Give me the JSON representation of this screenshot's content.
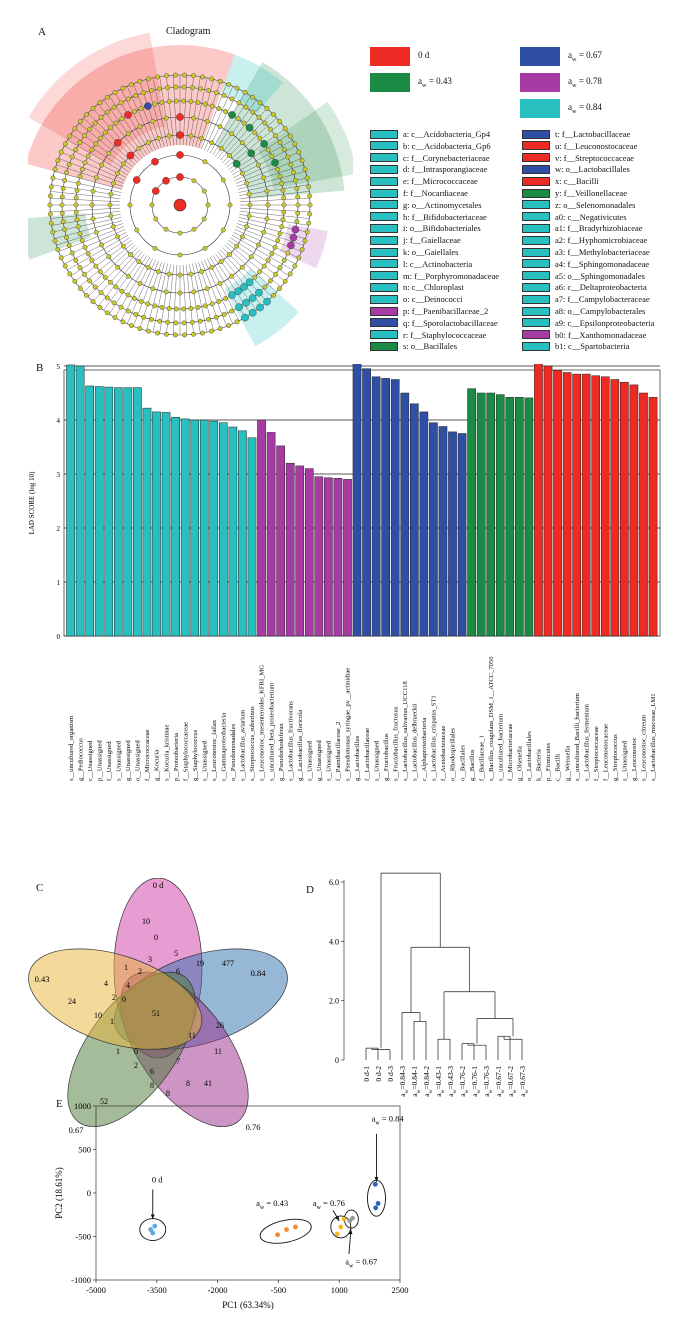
{
  "panels": {
    "a": "A",
    "b": "B",
    "c": "C",
    "d": "D",
    "e": "E"
  },
  "cladogram": {
    "title": "Cladogram",
    "groups": [
      {
        "label": "0 d",
        "color": "#ee2a24"
      },
      {
        "label": "aw = 0.43",
        "color": "#1b8a44"
      },
      {
        "label": "aw = 0.67",
        "color": "#2f4fa5"
      },
      {
        "label": "aw = 0.78",
        "color": "#a63ca3"
      },
      {
        "label": "aw = 0.84",
        "color": "#27bfc0"
      }
    ],
    "taxa_left": [
      {
        "t": "a: c__Acidobacteria_Gp4",
        "c": "#27bfc0"
      },
      {
        "t": "b: c__Acidobacteria_Gp6",
        "c": "#27bfc0"
      },
      {
        "t": "c: f__Corynebacteriaceae",
        "c": "#27bfc0"
      },
      {
        "t": "d: f__Intrasporangiaceae",
        "c": "#27bfc0"
      },
      {
        "t": "e: f__Micrococcaceae",
        "c": "#27bfc0"
      },
      {
        "t": "f: f__Nocardiaceae",
        "c": "#27bfc0"
      },
      {
        "t": "g: o__Actinomycetales",
        "c": "#27bfc0"
      },
      {
        "t": "h: f__Bifidobacteriaceae",
        "c": "#27bfc0"
      },
      {
        "t": "i: o__Bifidobacteriales",
        "c": "#27bfc0"
      },
      {
        "t": "j: f__Gaiellaceae",
        "c": "#27bfc0"
      },
      {
        "t": "k: o__Gaiellales",
        "c": "#27bfc0"
      },
      {
        "t": "l: c__Actinobacteria",
        "c": "#27bfc0"
      },
      {
        "t": "m: f__Porphyromonadaceae",
        "c": "#27bfc0"
      },
      {
        "t": "n: c__Chloroplast",
        "c": "#27bfc0"
      },
      {
        "t": "o: c__Deinococci",
        "c": "#27bfc0"
      },
      {
        "t": "p: f__Paenibacillaceae_2",
        "c": "#a63ca3"
      },
      {
        "t": "q: f__Sporolactobacillaceae",
        "c": "#2f4fa5"
      },
      {
        "t": "r: f__Staphylococcaceae",
        "c": "#27bfc0"
      },
      {
        "t": "s: o__Bacillales",
        "c": "#1b8a44"
      }
    ],
    "taxa_right": [
      {
        "t": "t: f__Lactobacillaceae",
        "c": "#2f4fa5"
      },
      {
        "t": "u: f__Leuconostocaceae",
        "c": "#ee2a24"
      },
      {
        "t": "v: f__Streptococcaceae",
        "c": "#ee2a24"
      },
      {
        "t": "w: o__Lactobacillales",
        "c": "#2f4fa5"
      },
      {
        "t": "x: c__Bacilli",
        "c": "#ee2a24"
      },
      {
        "t": "y: f__Veillonellaceae",
        "c": "#1b8a44"
      },
      {
        "t": "z: o__Selenomonadales",
        "c": "#27bfc0"
      },
      {
        "t": "a0: c__Negativicutes",
        "c": "#27bfc0"
      },
      {
        "t": "a1: f__Bradyrhizobiaceae",
        "c": "#27bfc0"
      },
      {
        "t": "a2: f__Hyphomicrobiaceae",
        "c": "#27bfc0"
      },
      {
        "t": "a3: f__Methylobacteriaceae",
        "c": "#27bfc0"
      },
      {
        "t": "a4: f__Sphingomonadaceae",
        "c": "#27bfc0"
      },
      {
        "t": "a5: o__Sphingomonadales",
        "c": "#27bfc0"
      },
      {
        "t": "a6: c__Deltaproteobacteria",
        "c": "#27bfc0"
      },
      {
        "t": "a7: f__Campylobacteraceae",
        "c": "#27bfc0"
      },
      {
        "t": "a8: o__Campylobacterales",
        "c": "#27bfc0"
      },
      {
        "t": "a9: c__Epsilonproteobacteria",
        "c": "#27bfc0"
      },
      {
        "t": "b0: f__Xanthomonadaceae",
        "c": "#a63ca3"
      },
      {
        "t": "b1: c__Spartobacteria",
        "c": "#27bfc0"
      }
    ]
  },
  "chart_data": [
    {
      "type": "bar",
      "panel": "B",
      "ylabel": "LAD SCORE (log 10)",
      "ylim": [
        0,
        5
      ],
      "yticks": [
        "0",
        "1",
        "2",
        "3",
        "4",
        "5"
      ],
      "grid": true,
      "colors": {
        "0.84": "#27bfc0",
        "0.78": "#a63ca3",
        "0.67": "#2f4fa5",
        "0.43": "#1b8a44",
        "0d": "#ee2a24"
      },
      "bars": [
        {
          "label": "s__uncultured_organism",
          "value": 5.02,
          "g": "0.84"
        },
        {
          "label": "g__Pediococcus",
          "value": 5.0,
          "g": "0.84"
        },
        {
          "label": "c__Unassigned",
          "value": 4.63,
          "g": "0.84"
        },
        {
          "label": "p__Unassigned",
          "value": 4.62,
          "g": "0.84"
        },
        {
          "label": "f__Unassigned",
          "value": 4.61,
          "g": "0.84"
        },
        {
          "label": "s__Unassigned",
          "value": 4.6,
          "g": "0.84"
        },
        {
          "label": "g__Unassigned",
          "value": 4.6,
          "g": "0.84"
        },
        {
          "label": "o__Unassigned",
          "value": 4.6,
          "g": "0.84"
        },
        {
          "label": "f__Micrococcaceae",
          "value": 4.22,
          "g": "0.84"
        },
        {
          "label": "g__Kocuria",
          "value": 4.15,
          "g": "0.84"
        },
        {
          "label": "s__Kocuria_kristinae",
          "value": 4.14,
          "g": "0.84"
        },
        {
          "label": "p__Proteobacteria",
          "value": 4.05,
          "g": "0.84"
        },
        {
          "label": "f__Staphylococcaceae",
          "value": 4.02,
          "g": "0.84"
        },
        {
          "label": "g__Staphylococcus",
          "value": 4.0,
          "g": "0.84"
        },
        {
          "label": "s__Unassigned",
          "value": 4.0,
          "g": "0.84"
        },
        {
          "label": "s__Leuconostoc_fallax",
          "value": 3.98,
          "g": "0.84"
        },
        {
          "label": "c__Gammaproteobacteria",
          "value": 3.95,
          "g": "0.84"
        },
        {
          "label": "o__Pseudomonadales",
          "value": 3.87,
          "g": "0.84"
        },
        {
          "label": "s__Lactobacillus_aviarium",
          "value": 3.8,
          "g": "0.84"
        },
        {
          "label": "s__Streptococcus_suberinus",
          "value": 3.67,
          "g": "0.84"
        },
        {
          "label": "s__Leuconostoc_mesenteroides_KFRI_MG",
          "value": 4.0,
          "g": "0.78"
        },
        {
          "label": "s__uncultured_beta_proteobacterium",
          "value": 3.77,
          "g": "0.78"
        },
        {
          "label": "g__Pseudorhodoferax",
          "value": 3.52,
          "g": "0.78"
        },
        {
          "label": "s__Lactobacillus_fructivorans",
          "value": 3.2,
          "g": "0.78"
        },
        {
          "label": "g__Lactobacillus_floricola",
          "value": 3.15,
          "g": "0.78"
        },
        {
          "label": "s__Unassigned",
          "value": 3.1,
          "g": "0.78"
        },
        {
          "label": "g__Unassigned",
          "value": 2.95,
          "g": "0.78"
        },
        {
          "label": "s__Unassigned",
          "value": 2.93,
          "g": "0.78"
        },
        {
          "label": "f__Paenibacillaceae_2",
          "value": 2.92,
          "g": "0.78"
        },
        {
          "label": "s__Pseudomonas_syringae_pv__actinidiae",
          "value": 2.9,
          "g": "0.78"
        },
        {
          "label": "g__Lactobacillus",
          "value": 5.08,
          "g": "0.67"
        },
        {
          "label": "f__Lactobacillaceae",
          "value": 4.95,
          "g": "0.67"
        },
        {
          "label": "s__Unassigned",
          "value": 4.8,
          "g": "0.67"
        },
        {
          "label": "g__Fructobacillus",
          "value": 4.77,
          "g": "0.67"
        },
        {
          "label": "s__Fructobacillus_fructosus",
          "value": 4.75,
          "g": "0.67"
        },
        {
          "label": "s__Lactobacillus_salivarius_UCC118",
          "value": 4.5,
          "g": "0.67"
        },
        {
          "label": "s__Lactobacillus_delbrueckii",
          "value": 4.3,
          "g": "0.67"
        },
        {
          "label": "c__Alphaproteobacteria",
          "value": 4.15,
          "g": "0.67"
        },
        {
          "label": "s__Lactobacillus_crispatus_ST1",
          "value": 3.95,
          "g": "0.67"
        },
        {
          "label": "f__Acetobacteraceae",
          "value": 3.88,
          "g": "0.67"
        },
        {
          "label": "o__Rhodospirillales",
          "value": 3.78,
          "g": "0.67"
        },
        {
          "label": "o__Bacillales",
          "value": 3.75,
          "g": "0.67"
        },
        {
          "label": "g__Bacillus",
          "value": 4.58,
          "g": "0.43"
        },
        {
          "label": "f__Bacillaceae_1",
          "value": 4.5,
          "g": "0.43"
        },
        {
          "label": "s__Bacillus_coagulans_DSM_1__ATCC_7050",
          "value": 4.5,
          "g": "0.43"
        },
        {
          "label": "s__uncultured_bacterium",
          "value": 4.47,
          "g": "0.43"
        },
        {
          "label": "f__Microbacteriaceae",
          "value": 4.42,
          "g": "0.43"
        },
        {
          "label": "g__Olsenella",
          "value": 4.42,
          "g": "0.43"
        },
        {
          "label": "o__Lactobacillales",
          "value": 4.41,
          "g": "0.43"
        },
        {
          "label": "k__Bacteria",
          "value": 5.09,
          "g": "0d"
        },
        {
          "label": "p__Firmicutes",
          "value": 5.0,
          "g": "0d"
        },
        {
          "label": "c__Bacilli",
          "value": 4.92,
          "g": "0d"
        },
        {
          "label": "g__Weissella",
          "value": 4.88,
          "g": "0d"
        },
        {
          "label": "s__uncultured_Bacilli_bacterium",
          "value": 4.85,
          "g": "0d"
        },
        {
          "label": "s__Lactobacillus_fermentum",
          "value": 4.85,
          "g": "0d"
        },
        {
          "label": "f__Streptococcaceae",
          "value": 4.82,
          "g": "0d"
        },
        {
          "label": "f__Leuconostocaceae",
          "value": 4.8,
          "g": "0d"
        },
        {
          "label": "g__Streptococcus",
          "value": 4.75,
          "g": "0d"
        },
        {
          "label": "s__Unassigned",
          "value": 4.7,
          "g": "0d"
        },
        {
          "label": "g__Leuconostoc",
          "value": 4.65,
          "g": "0d"
        },
        {
          "label": "s__Leuconostoc_citreum",
          "value": 4.5,
          "g": "0d"
        },
        {
          "label": "s__Lactobacillus_mucosae_LM1",
          "value": 4.42,
          "g": "0d"
        }
      ]
    },
    {
      "type": "venn",
      "panel": "C",
      "sets": [
        "0 d",
        "0.84",
        "0.76",
        "0.67",
        "0.43"
      ],
      "numbers": [
        "10",
        "477",
        "41",
        "52",
        "24",
        "51",
        "1",
        "3",
        "0",
        "5",
        "6",
        "19",
        "4",
        "2",
        "4",
        "2",
        "0",
        "10",
        "1",
        "11",
        "26",
        "11",
        "7",
        "8",
        "8",
        "8",
        "6",
        "2",
        "1",
        "0"
      ]
    },
    {
      "type": "dendrogram",
      "panel": "D",
      "ylim": [
        0,
        6
      ],
      "yticks": [
        "0",
        "2.0",
        "4.0",
        "6.0"
      ],
      "leaves": [
        "0 d-1",
        "0 d-2",
        "0 d-3",
        "aw=0.84-3",
        "aw=0.84-1",
        "aw=0.84-2",
        "aw=0.43-1",
        "aw=0.43-3",
        "aw=0.76-2",
        "aw=0.76-1",
        "aw=0.76-3",
        "aw=0.67-1",
        "aw=0.67-2",
        "aw=0.67-3"
      ]
    },
    {
      "type": "scatter",
      "panel": "E",
      "xlabel": "PC1 (63.34%)",
      "ylabel": "PC2 (18.61%)",
      "xlim": [
        -5000,
        2500
      ],
      "ylim": [
        -1000,
        1000
      ],
      "xticks": [
        "-5000",
        "-3500",
        "-2000",
        "-500",
        "1000",
        "2500"
      ],
      "yticks": [
        "1000",
        "500",
        "0",
        "-500",
        "-1000"
      ],
      "series": [
        {
          "name": "0 d",
          "color": "#5aa8e0",
          "points": [
            [
              -3650,
              -420
            ],
            [
              -3550,
              -380
            ],
            [
              -3600,
              -460
            ]
          ]
        },
        {
          "name": "aw = 0.43",
          "color": "#f28a2e",
          "points": [
            [
              -520,
              -480
            ],
            [
              -300,
              -420
            ],
            [
              -80,
              -390
            ]
          ]
        },
        {
          "name": "aw = 0.76",
          "color": "#f5b820",
          "points": [
            [
              950,
              -470
            ],
            [
              1040,
              -390
            ],
            [
              1120,
              -300
            ]
          ]
        },
        {
          "name": "aw = 0.67",
          "color": "#9a9a9a",
          "points": [
            [
              1260,
              -320
            ],
            [
              1330,
              -290
            ]
          ]
        },
        {
          "name": "aw = 0.84",
          "color": "#2f5fc0",
          "points": [
            [
              1890,
              100
            ],
            [
              1960,
              -120
            ],
            [
              1900,
              -170
            ]
          ]
        }
      ],
      "annotations": [
        "aw = 0.84",
        "0 d",
        "aw = 0.43",
        "aw = 0.76",
        "aw = 0.67"
      ]
    }
  ]
}
